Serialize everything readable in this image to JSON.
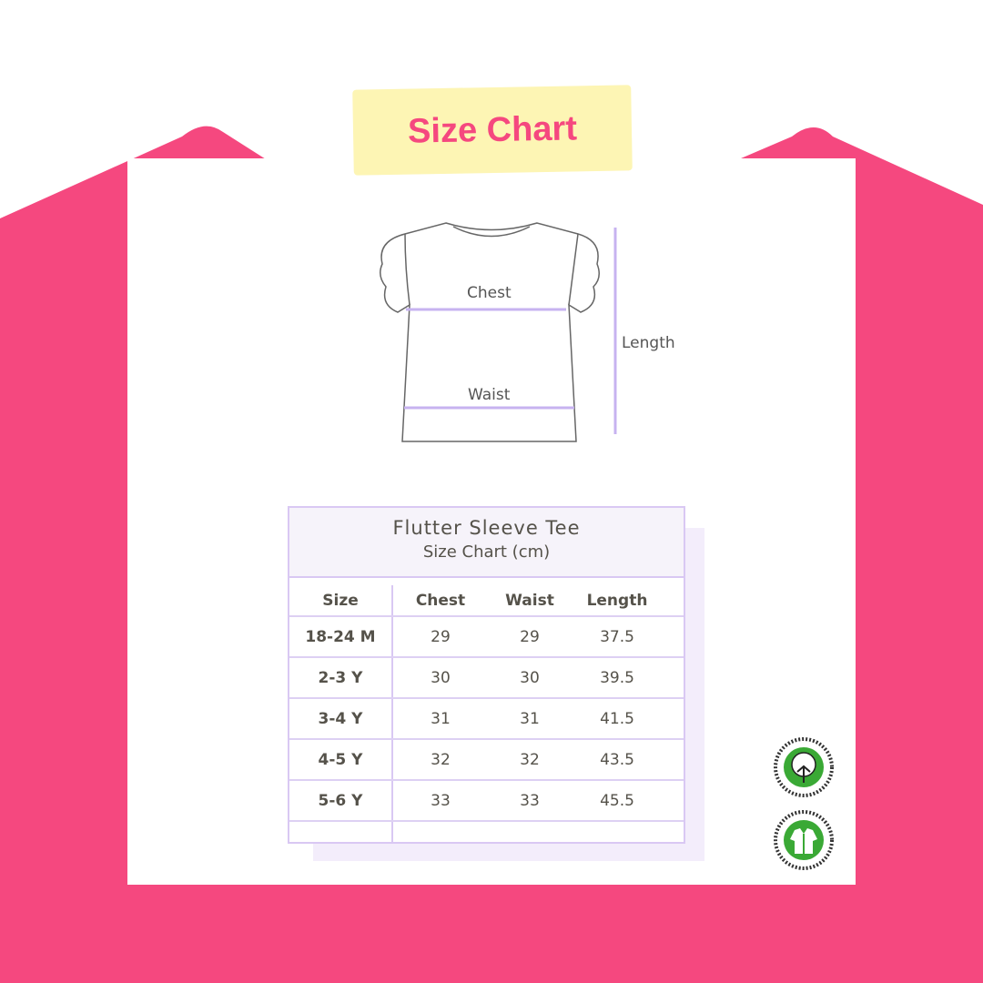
{
  "title": "Size Chart",
  "diagram": {
    "chest": "Chest",
    "waist": "Waist",
    "length": "Length"
  },
  "table": {
    "title": "Flutter Sleeve Tee",
    "subtitle": "Size Chart (cm)",
    "headers": [
      "Size",
      "Chest",
      "Waist",
      "Length"
    ],
    "rows": [
      [
        "18-24 M",
        "29",
        "29",
        "37.5"
      ],
      [
        "2-3 Y",
        "30",
        "30",
        "39.5"
      ],
      [
        "3-4 Y",
        "31",
        "31",
        "41.5"
      ],
      [
        "4-5 Y",
        "32",
        "32",
        "43.5"
      ],
      [
        "5-6 Y",
        "33",
        "33",
        "45.5"
      ]
    ]
  },
  "logos": {
    "cotton": "100% NATURAL ORGANIC COTTON",
    "gots": "GLOBAL ORGANIC TEXTILE STANDARD · GOTS"
  },
  "colors": {
    "pink": "#f5487f",
    "yellow": "#fdf5b4",
    "lavender": "#d9c8f3",
    "green": "#3aa935"
  }
}
